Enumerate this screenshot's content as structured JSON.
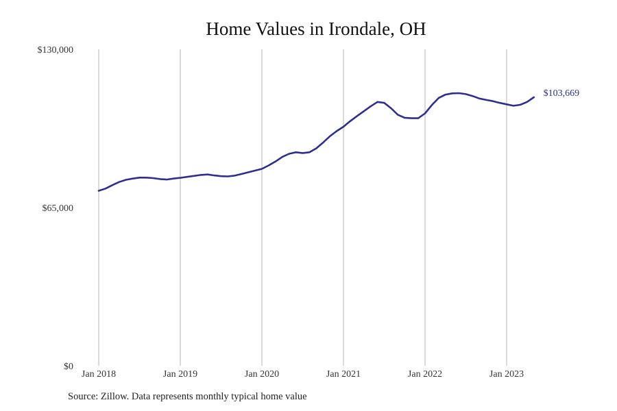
{
  "chart_data": {
    "type": "line",
    "title": "Home Values in Irondale, OH",
    "xlabel": "",
    "ylabel": "",
    "x_tick_labels": [
      "Jan 2018",
      "Jan 2019",
      "Jan 2020",
      "Jan 2021",
      "Jan 2022",
      "Jan 2023"
    ],
    "y_tick_labels": [
      "$130,000",
      "$65,000",
      "$0"
    ],
    "y_ticks": [
      130000,
      65000,
      0
    ],
    "ylim": [
      0,
      130000
    ],
    "xlim": [
      "2018-01",
      "2023-12"
    ],
    "line_color": "#2e2e8f",
    "grid": "vertical lines at each January",
    "end_label": "$103,669",
    "series": [
      {
        "x": [
          "2018-01",
          "2018-02",
          "2018-03",
          "2018-04",
          "2018-05",
          "2018-06",
          "2018-07",
          "2018-08",
          "2018-09",
          "2018-10",
          "2018-11",
          "2018-12",
          "2019-01",
          "2019-02",
          "2019-03",
          "2019-04",
          "2019-05",
          "2019-06",
          "2019-07",
          "2019-08",
          "2019-09",
          "2019-10",
          "2019-11",
          "2019-12",
          "2020-01",
          "2020-02",
          "2020-03",
          "2020-04",
          "2020-05",
          "2020-06",
          "2020-07",
          "2020-08",
          "2020-09",
          "2020-10",
          "2020-11",
          "2020-12",
          "2021-01",
          "2021-02",
          "2021-03",
          "2021-04",
          "2021-05",
          "2021-06",
          "2021-07",
          "2021-08",
          "2021-09",
          "2021-10",
          "2021-11",
          "2021-12",
          "2022-01",
          "2022-02",
          "2022-03",
          "2022-04",
          "2022-05",
          "2022-06",
          "2022-07",
          "2022-08",
          "2022-09",
          "2022-10",
          "2022-11",
          "2022-12",
          "2023-01",
          "2023-02",
          "2023-03",
          "2023-04",
          "2023-05"
        ],
        "values": [
          71900,
          72800,
          74200,
          75500,
          76400,
          76900,
          77300,
          77300,
          77100,
          76700,
          76500,
          76900,
          77200,
          77600,
          78000,
          78400,
          78600,
          78200,
          77900,
          77800,
          78100,
          78800,
          79500,
          80200,
          80900,
          82300,
          83900,
          85800,
          87100,
          87700,
          87400,
          87700,
          89300,
          91700,
          94300,
          96400,
          98200,
          100500,
          102600,
          104600,
          106600,
          108400,
          108000,
          105800,
          103100,
          101900,
          101700,
          101700,
          103700,
          107100,
          110000,
          111400,
          111900,
          112000,
          111600,
          110800,
          109800,
          109200,
          108700,
          108000,
          107400,
          106800,
          107200,
          108400,
          110300
        ]
      }
    ]
  },
  "source_text": "Source: Zillow. Data represents monthly typical home value"
}
